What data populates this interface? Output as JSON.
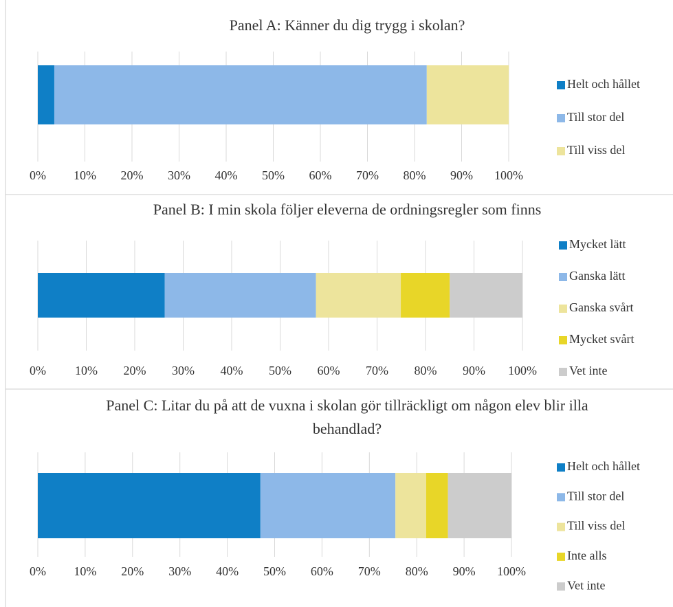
{
  "chart_data": [
    {
      "type": "bar",
      "orientation": "horizontal",
      "stacked": true,
      "title": "Panel A: Känner du dig trygg i skolan?",
      "xlim": [
        0,
        100
      ],
      "xticks": [
        {
          "value": 0,
          "label": "0%"
        },
        {
          "value": 10,
          "label": "10%"
        },
        {
          "value": 20,
          "label": "20%"
        },
        {
          "value": 30,
          "label": "30%"
        },
        {
          "value": 40,
          "label": "40%"
        },
        {
          "value": 50,
          "label": "50%"
        },
        {
          "value": 60,
          "label": "60%"
        },
        {
          "value": 70,
          "label": "70%"
        },
        {
          "value": 80,
          "label": "80%"
        },
        {
          "value": 90,
          "label": "90%"
        },
        {
          "value": 100,
          "label": "100%"
        }
      ],
      "grid": true,
      "legend": "right",
      "series": [
        {
          "name": "Helt och hållet",
          "color": "#0f7fc6",
          "values": [
            3.5
          ]
        },
        {
          "name": "Till stor del",
          "color": "#8db8e8",
          "values": [
            79.1
          ]
        },
        {
          "name": "Till viss del",
          "color": "#ede49c",
          "values": [
            17.4
          ]
        }
      ]
    },
    {
      "type": "bar",
      "orientation": "horizontal",
      "stacked": true,
      "title": "Panel B: I min skola följer eleverna de ordningsregler som finns",
      "xlim": [
        0,
        100
      ],
      "xticks": [
        {
          "value": 0,
          "label": "0%"
        },
        {
          "value": 10,
          "label": "10%"
        },
        {
          "value": 20,
          "label": "20%"
        },
        {
          "value": 30,
          "label": "30%"
        },
        {
          "value": 40,
          "label": "40%"
        },
        {
          "value": 50,
          "label": "50%"
        },
        {
          "value": 60,
          "label": "60%"
        },
        {
          "value": 70,
          "label": "70%"
        },
        {
          "value": 80,
          "label": "80%"
        },
        {
          "value": 90,
          "label": "90%"
        },
        {
          "value": 100,
          "label": "100%"
        }
      ],
      "grid": true,
      "legend": "right",
      "series": [
        {
          "name": "Mycket lätt",
          "color": "#0f7fc6",
          "values": [
            26.2
          ]
        },
        {
          "name": "Ganska lätt",
          "color": "#8db8e8",
          "values": [
            31.2
          ]
        },
        {
          "name": "Ganska svårt",
          "color": "#ede49c",
          "values": [
            17.5
          ]
        },
        {
          "name": "Mycket svårt",
          "color": "#e8d628",
          "values": [
            10.1
          ]
        },
        {
          "name": "Vet inte",
          "color": "#cccccc",
          "values": [
            15.0
          ]
        }
      ]
    },
    {
      "type": "bar",
      "orientation": "horizontal",
      "stacked": true,
      "title": "Panel C: Litar du på att de vuxna i skolan gör tillräckligt om någon elev blir illa behandlad?",
      "xlim": [
        0,
        100
      ],
      "xticks": [
        {
          "value": 0,
          "label": "0%"
        },
        {
          "value": 10,
          "label": "10%"
        },
        {
          "value": 20,
          "label": "20%"
        },
        {
          "value": 30,
          "label": "30%"
        },
        {
          "value": 40,
          "label": "40%"
        },
        {
          "value": 50,
          "label": "50%"
        },
        {
          "value": 60,
          "label": "60%"
        },
        {
          "value": 70,
          "label": "70%"
        },
        {
          "value": 80,
          "label": "80%"
        },
        {
          "value": 90,
          "label": "90%"
        },
        {
          "value": 100,
          "label": "100%"
        }
      ],
      "grid": true,
      "legend": "right",
      "series": [
        {
          "name": "Helt och hållet",
          "color": "#0f7fc6",
          "values": [
            47.0
          ]
        },
        {
          "name": "Till stor del",
          "color": "#8db8e8",
          "values": [
            28.5
          ]
        },
        {
          "name": "Till viss del",
          "color": "#ede49c",
          "values": [
            6.5
          ]
        },
        {
          "name": "Inte alls",
          "color": "#e8d628",
          "values": [
            4.6
          ]
        },
        {
          "name": "Vet inte",
          "color": "#cccccc",
          "values": [
            13.4
          ]
        }
      ]
    }
  ]
}
